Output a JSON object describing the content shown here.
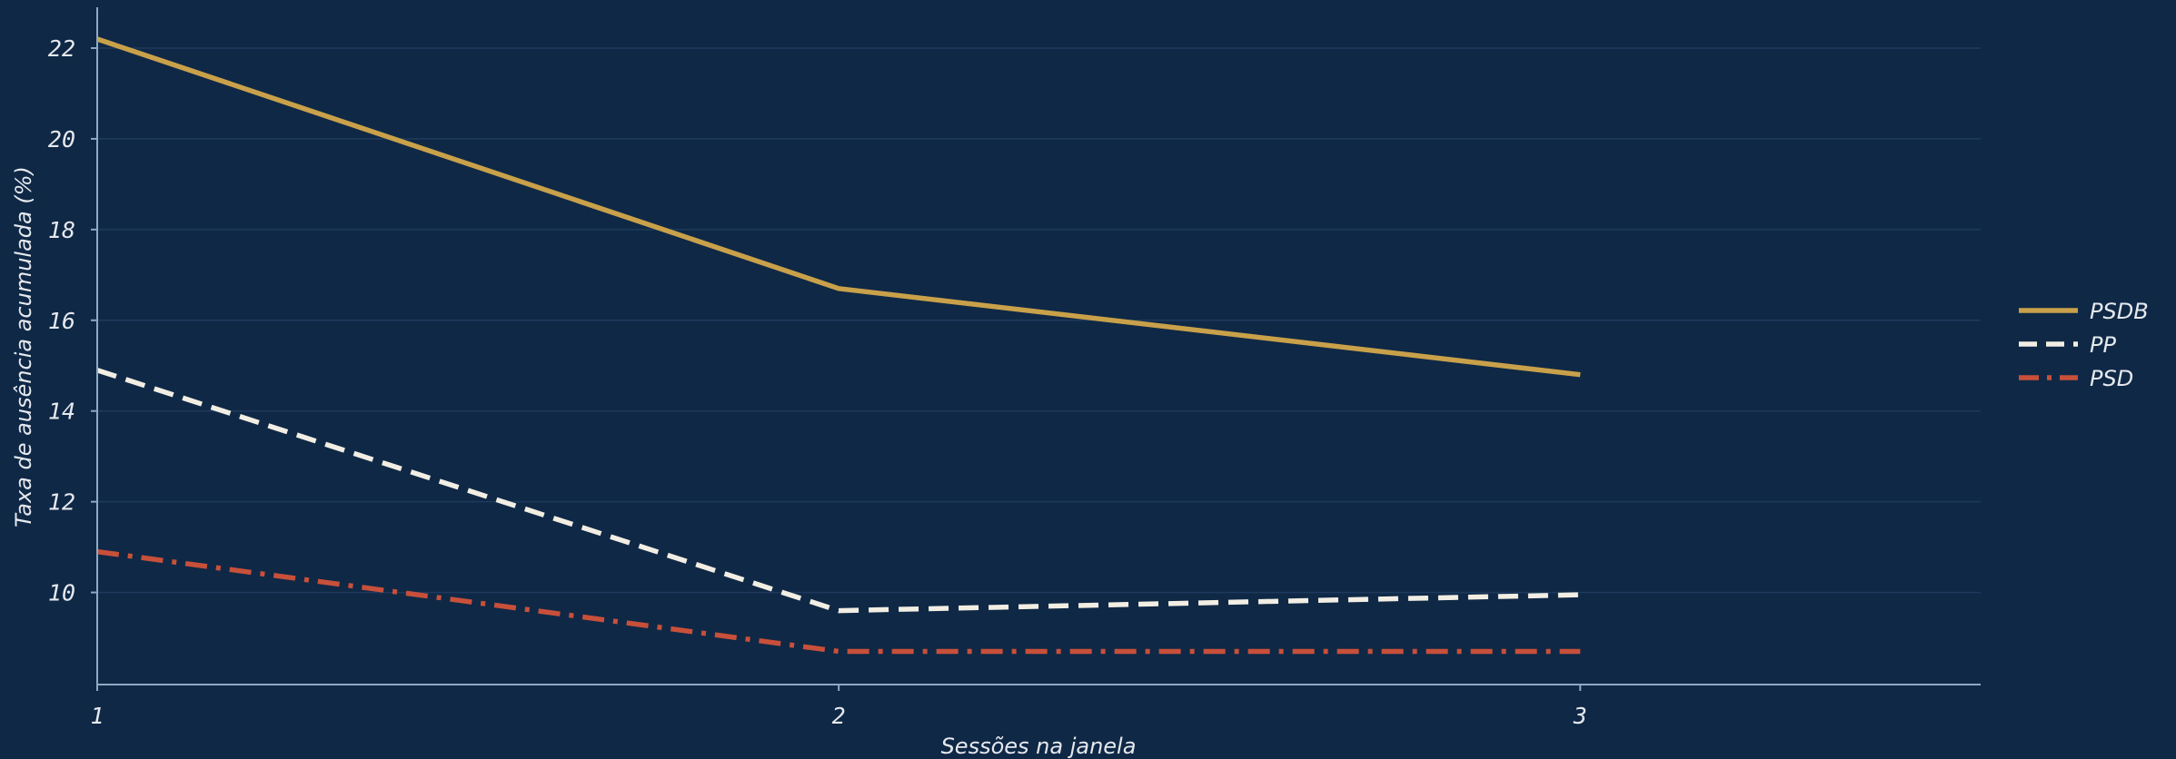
{
  "chart_data": {
    "type": "line",
    "xlabel": "Sessões na janela",
    "ylabel": "Taxa de ausência acumulada (%)",
    "x": [
      1,
      2,
      3
    ],
    "xlim": [
      1,
      3.54
    ],
    "ylim": [
      7.97,
      22.9
    ],
    "xticks": [
      1,
      2,
      3
    ],
    "yticks": [
      10,
      12,
      14,
      16,
      18,
      20,
      22
    ],
    "grid": "horizontal",
    "legend_position": "right",
    "series": [
      {
        "name": "PSDB",
        "values": [
          22.2,
          16.7,
          14.8
        ],
        "color": "#c9a14a",
        "style": "solid"
      },
      {
        "name": "PP",
        "values": [
          14.9,
          9.6,
          9.95
        ],
        "color": "#f2eee3",
        "style": "dashed"
      },
      {
        "name": "PSD",
        "values": [
          10.9,
          8.7,
          8.7
        ],
        "color": "#c8503a",
        "style": "dashdot"
      }
    ],
    "colors": {
      "background": "#0f2846",
      "grid": "#1d3a5c",
      "axis": "#8fa8c4",
      "text": "#e6e9ee"
    }
  }
}
